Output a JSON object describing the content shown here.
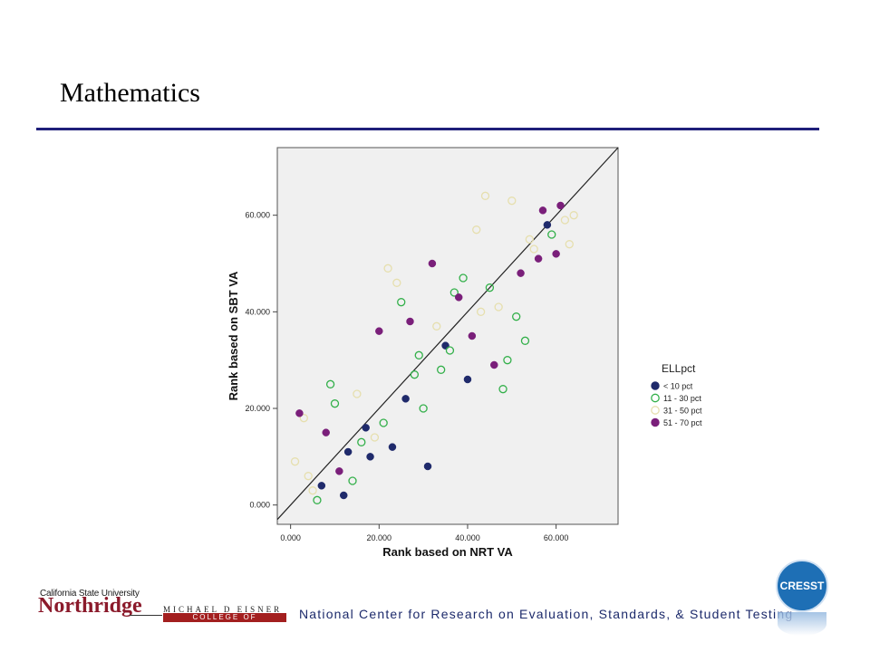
{
  "slide": {
    "title": "Mathematics"
  },
  "footer": {
    "csun_top": "California State University",
    "csun_name": "Northridge",
    "eisner_top": "MICHAEL D EISNER",
    "eisner_bottom": "COLLEGE OF EDUCATION",
    "center_name": "National Center for Research on Evaluation, Standards, & Student Testing",
    "logo_text": "CRESST"
  },
  "colors": {
    "title_rule": "#1f1f7a",
    "plot_bg": "#f0f0f0",
    "navy": "#1f2a6b",
    "green": "#33b04a",
    "beige": "#e6dfae",
    "purple": "#7a1f7a"
  },
  "chart_data": {
    "type": "scatter",
    "xlabel": "Rank based on NRT VA",
    "ylabel": "Rank based on SBT VA",
    "xlim": [
      -3,
      74
    ],
    "ylim": [
      -4,
      74
    ],
    "xticks": [
      0,
      20,
      40,
      60
    ],
    "yticks": [
      0,
      20,
      40,
      60
    ],
    "xtick_labels": [
      "0.000",
      "20.000",
      "40.000",
      "60.000"
    ],
    "ytick_labels": [
      "0.000",
      "20.000",
      "40.000",
      "60.000"
    ],
    "reference_line": "y = x",
    "legend": {
      "title": "ELLpct",
      "placement": "right"
    },
    "series": [
      {
        "name": "< 10 pct",
        "color": "#1f2a6b",
        "filled": true,
        "points": [
          [
            7,
            4
          ],
          [
            12,
            2
          ],
          [
            13,
            11
          ],
          [
            17,
            16
          ],
          [
            18,
            10
          ],
          [
            23,
            12
          ],
          [
            26,
            22
          ],
          [
            31,
            8
          ],
          [
            35,
            33
          ],
          [
            40,
            26
          ],
          [
            58,
            58
          ]
        ]
      },
      {
        "name": "11 - 30 pct",
        "color": "#33b04a",
        "filled": false,
        "points": [
          [
            6,
            1
          ],
          [
            9,
            25
          ],
          [
            10,
            21
          ],
          [
            14,
            5
          ],
          [
            16,
            13
          ],
          [
            21,
            17
          ],
          [
            25,
            42
          ],
          [
            28,
            27
          ],
          [
            29,
            31
          ],
          [
            30,
            20
          ],
          [
            34,
            28
          ],
          [
            36,
            32
          ],
          [
            37,
            44
          ],
          [
            39,
            47
          ],
          [
            45,
            45
          ],
          [
            48,
            24
          ],
          [
            49,
            30
          ],
          [
            51,
            39
          ],
          [
            53,
            34
          ],
          [
            59,
            56
          ]
        ]
      },
      {
        "name": "31 - 50 pct",
        "color": "#e6dfae",
        "filled": false,
        "points": [
          [
            1,
            9
          ],
          [
            3,
            18
          ],
          [
            4,
            6
          ],
          [
            5,
            3
          ],
          [
            15,
            23
          ],
          [
            19,
            14
          ],
          [
            22,
            49
          ],
          [
            24,
            46
          ],
          [
            33,
            37
          ],
          [
            42,
            57
          ],
          [
            43,
            40
          ],
          [
            44,
            64
          ],
          [
            47,
            41
          ],
          [
            50,
            63
          ],
          [
            54,
            55
          ],
          [
            55,
            53
          ],
          [
            62,
            59
          ],
          [
            63,
            54
          ],
          [
            64,
            60
          ]
        ]
      },
      {
        "name": "51 - 70 pct",
        "color": "#7a1f7a",
        "filled": true,
        "points": [
          [
            2,
            19
          ],
          [
            8,
            15
          ],
          [
            11,
            7
          ],
          [
            20,
            36
          ],
          [
            27,
            38
          ],
          [
            32,
            50
          ],
          [
            38,
            43
          ],
          [
            41,
            35
          ],
          [
            46,
            29
          ],
          [
            52,
            48
          ],
          [
            56,
            51
          ],
          [
            57,
            61
          ],
          [
            60,
            52
          ],
          [
            61,
            62
          ]
        ]
      }
    ]
  }
}
